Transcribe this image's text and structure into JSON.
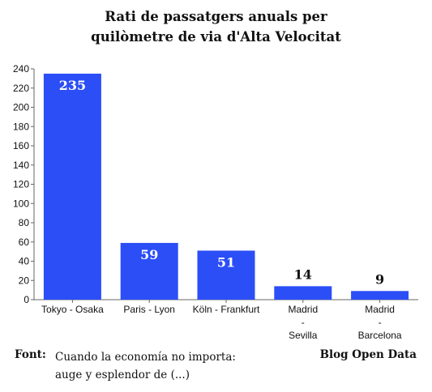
{
  "chart_data": {
    "type": "bar",
    "title_lines": [
      "Rati de passatgers anuals per",
      "quilòmetre de via d'Alta Velocitat"
    ],
    "xlabel": "",
    "ylabel": "",
    "categories": [
      [
        "Tokyo - Osaka"
      ],
      [
        "Paris - Lyon"
      ],
      [
        "Köln - Frankfurt"
      ],
      [
        "Madrid",
        "-",
        "Sevilla"
      ],
      [
        "Madrid",
        "-",
        "Barcelona"
      ]
    ],
    "values": [
      235,
      59,
      51,
      14,
      9
    ],
    "data_labels": [
      "235",
      "59",
      "51",
      "14",
      "9"
    ],
    "ylim": [
      0,
      240
    ],
    "yticks": [
      0,
      20,
      40,
      60,
      80,
      100,
      120,
      140,
      160,
      180,
      200,
      220,
      240
    ],
    "bar_color": "#2b4ef7",
    "grid": false,
    "legend": "none"
  },
  "footer": {
    "source_label": "Font:",
    "source_lines": [
      "Cuando la economía no importa:",
      "auge y esplendor de (...)"
    ],
    "credit": "Blog Open Data"
  }
}
